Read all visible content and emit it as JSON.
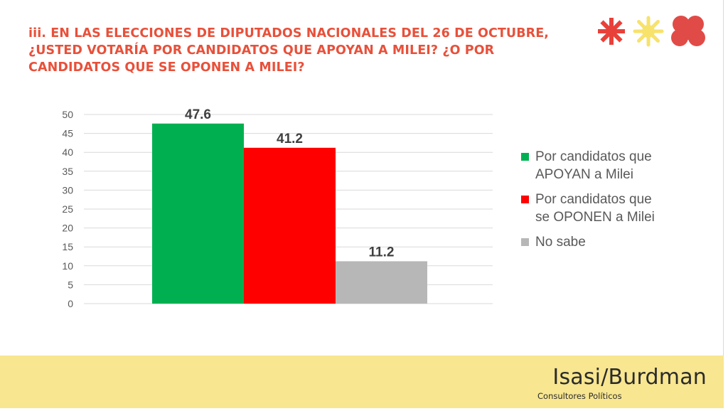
{
  "title": "iii. EN LAS ELECCIONES DE DIPUTADOS NACIONALES DEL 26 DE OCTUBRE, ¿USTED VOTARÍA POR CANDIDATOS QUE APOYAN A MILEI? ¿O POR CANDIDATOS QUE SE OPONEN A MILEI?",
  "brand": {
    "name": "Isasi/Burdman",
    "tagline": "Consultores Políticos",
    "icons": [
      "asterisk-icon",
      "sun-icon",
      "cloud-icon"
    ],
    "icon_colors": [
      "#e8413a",
      "#f7e26b",
      "#e14b47"
    ]
  },
  "colors": {
    "title": "#e8503a",
    "footer": "#f8e690",
    "axis_text": "#595959",
    "gridline": "#d9d9d9"
  },
  "legend": {
    "placement": "right",
    "items": [
      {
        "label": "Por candidatos que\nAPOYAN a Milei",
        "color": "#00b050"
      },
      {
        "label": "Por candidatos que\nse OPONEN a Milei",
        "color": "#ff0000"
      },
      {
        "label": "No sabe",
        "color": "#b7b7b7"
      }
    ]
  },
  "chart_data": {
    "type": "bar",
    "title": "",
    "xlabel": "",
    "ylabel": "",
    "ylim": [
      0,
      50
    ],
    "yticks": [
      0,
      5,
      10,
      15,
      20,
      25,
      30,
      35,
      40,
      45,
      50
    ],
    "grid": true,
    "legend_position": "right",
    "series": [
      {
        "name": "Por candidatos que APOYAN a Milei",
        "values": [
          47.6
        ],
        "color": "#00b050"
      },
      {
        "name": "Por candidatos que se OPONEN a Milei",
        "values": [
          41.2
        ],
        "color": "#ff0000"
      },
      {
        "name": "No sabe",
        "values": [
          11.2
        ],
        "color": "#b7b7b7"
      }
    ],
    "data_labels": [
      "47.6",
      "41.2",
      "11.2"
    ]
  }
}
